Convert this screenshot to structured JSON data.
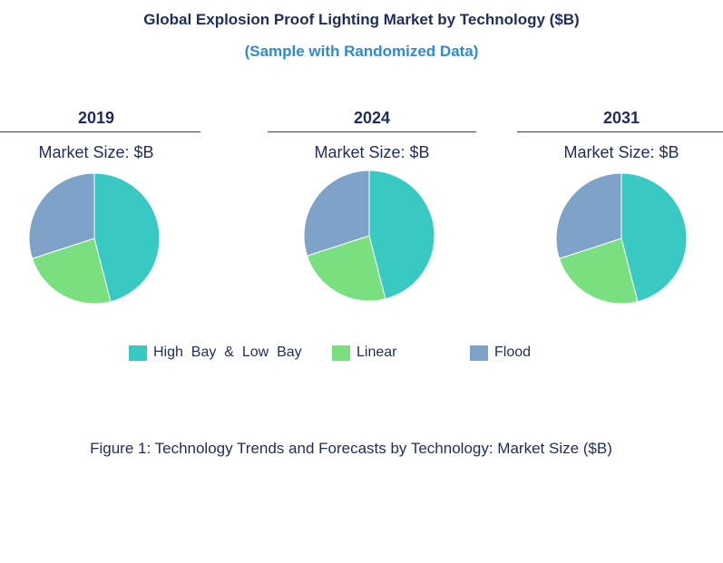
{
  "header": {
    "title": "Global Explosion Proof Lighting Market by Technology ($B)",
    "subtitle": "(Sample with Randomized Data)"
  },
  "caption": "Figure 1: Technology Trends and Forecasts by Technology: Market Size ($B)",
  "colors": {
    "high_bay_low_bay": "#38c9c3",
    "linear": "#7ae07f",
    "flood": "#7fa3c8"
  },
  "chart_data": [
    {
      "type": "pie",
      "title": "2019",
      "subtitle": "Market Size: $B",
      "categories": [
        "High Bay & Low Bay",
        "Linear",
        "Flood"
      ],
      "values": [
        46,
        24,
        30
      ]
    },
    {
      "type": "pie",
      "title": "2024",
      "subtitle": "Market Size: $B",
      "categories": [
        "High Bay & Low Bay",
        "Linear",
        "Flood"
      ],
      "values": [
        46,
        24,
        30
      ]
    },
    {
      "type": "pie",
      "title": "2031",
      "subtitle": "Market Size: $B",
      "categories": [
        "High Bay & Low Bay",
        "Linear",
        "Flood"
      ],
      "values": [
        46,
        24,
        30
      ]
    }
  ],
  "legend": {
    "items": [
      {
        "label": "High  Bay  &  Low  Bay",
        "color": "#38c9c3"
      },
      {
        "label": "Linear",
        "color": "#7ae07f"
      },
      {
        "label": "Flood",
        "color": "#7fa3c8"
      }
    ]
  }
}
